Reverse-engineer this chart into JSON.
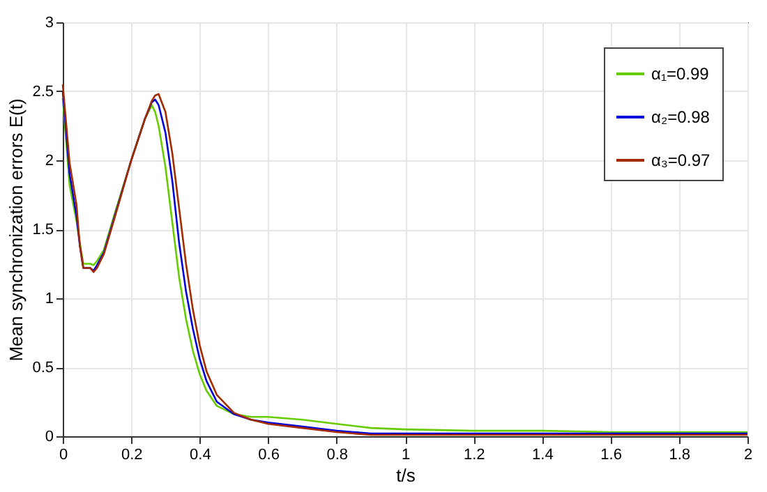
{
  "chart_data": {
    "type": "line",
    "xlabel": "t/s",
    "ylabel": "Mean synchronization errors E(t)",
    "x": [
      0,
      0.02,
      0.04,
      0.05,
      0.06,
      0.08,
      0.09,
      0.1,
      0.12,
      0.15,
      0.2,
      0.24,
      0.26,
      0.27,
      0.28,
      0.3,
      0.32,
      0.34,
      0.36,
      0.38,
      0.4,
      0.42,
      0.45,
      0.5,
      0.55,
      0.6,
      0.7,
      0.8,
      0.9,
      1.0,
      1.2,
      1.4,
      1.6,
      1.8,
      2.0
    ],
    "series": [
      {
        "name": "α₁=0.99",
        "color": "#66cc00",
        "values": [
          2.45,
          1.82,
          1.56,
          1.4,
          1.25,
          1.25,
          1.24,
          1.27,
          1.35,
          1.6,
          2.0,
          2.3,
          2.4,
          2.35,
          2.25,
          1.95,
          1.55,
          1.15,
          0.85,
          0.62,
          0.45,
          0.33,
          0.22,
          0.16,
          0.14,
          0.14,
          0.12,
          0.09,
          0.06,
          0.05,
          0.04,
          0.04,
          0.03,
          0.03,
          0.03
        ]
      },
      {
        "name": "α₂=0.98",
        "color": "#0000dd",
        "values": [
          2.5,
          1.9,
          1.6,
          1.38,
          1.22,
          1.22,
          1.2,
          1.24,
          1.33,
          1.58,
          2.0,
          2.3,
          2.42,
          2.44,
          2.4,
          2.2,
          1.85,
          1.4,
          1.05,
          0.78,
          0.56,
          0.4,
          0.25,
          0.16,
          0.12,
          0.1,
          0.07,
          0.04,
          0.02,
          0.02,
          0.02,
          0.02,
          0.02,
          0.02,
          0.02
        ]
      },
      {
        "name": "α₃=0.97",
        "color": "#a52a00",
        "values": [
          2.55,
          1.98,
          1.68,
          1.38,
          1.22,
          1.22,
          1.19,
          1.22,
          1.32,
          1.57,
          2.0,
          2.3,
          2.43,
          2.47,
          2.48,
          2.35,
          2.05,
          1.65,
          1.25,
          0.92,
          0.66,
          0.47,
          0.3,
          0.17,
          0.12,
          0.09,
          0.06,
          0.03,
          0.01,
          0.01,
          0.01,
          0.01,
          0.01,
          0.01,
          0.01
        ]
      }
    ],
    "xlim": [
      0,
      2
    ],
    "xticks": [
      0,
      0.2,
      0.4,
      0.6,
      0.8,
      1,
      1.2,
      1.4,
      1.6,
      1.8,
      2
    ],
    "ylim": [
      0,
      3
    ],
    "yticks": [
      0,
      0.5,
      1,
      1.5,
      2,
      2.5,
      3
    ],
    "grid": true,
    "legend": "top right",
    "marker": "none",
    "line_style": "solid"
  }
}
